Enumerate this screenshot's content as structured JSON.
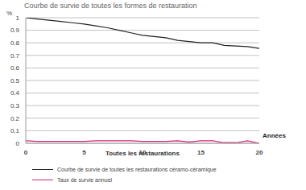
{
  "chart_data": {
    "type": "line",
    "title": "Courbe de survie de toutes les formes de restauration",
    "y_label": "%",
    "x_label": "Années",
    "annotations": [
      "Toutes les restaurations"
    ],
    "x": [
      0,
      1,
      2,
      3,
      4,
      5,
      6,
      7,
      8,
      9,
      10,
      11,
      12,
      13,
      14,
      15,
      16,
      17,
      18,
      19,
      20
    ],
    "series": [
      {
        "name": "Courbe de survie de toutes les restaurations céramo-céramique",
        "color": "#222222",
        "marker": "none",
        "values": [
          1.0,
          0.99,
          0.98,
          0.97,
          0.96,
          0.95,
          0.935,
          0.92,
          0.9,
          0.88,
          0.86,
          0.85,
          0.84,
          0.82,
          0.81,
          0.8,
          0.8,
          0.78,
          0.775,
          0.77,
          0.755
        ]
      },
      {
        "name": "Taux de survie annuel",
        "color": "#d4237a",
        "marker": "none",
        "values": [
          0.02,
          0.015,
          0.015,
          0.015,
          0.015,
          0.015,
          0.02,
          0.02,
          0.02,
          0.02,
          0.015,
          0.015,
          0.015,
          0.02,
          0.01,
          0.02,
          0.02,
          0.005,
          0.005,
          0.02,
          0.0
        ]
      }
    ],
    "xlim": [
      0,
      20
    ],
    "xticks": [
      0,
      5,
      10,
      15,
      20
    ],
    "ylim": [
      0,
      1
    ],
    "yticks": [
      0,
      0.1,
      0.2,
      0.3,
      0.4,
      0.5,
      0.6,
      0.7,
      0.8,
      0.9,
      1
    ],
    "grid": true
  }
}
